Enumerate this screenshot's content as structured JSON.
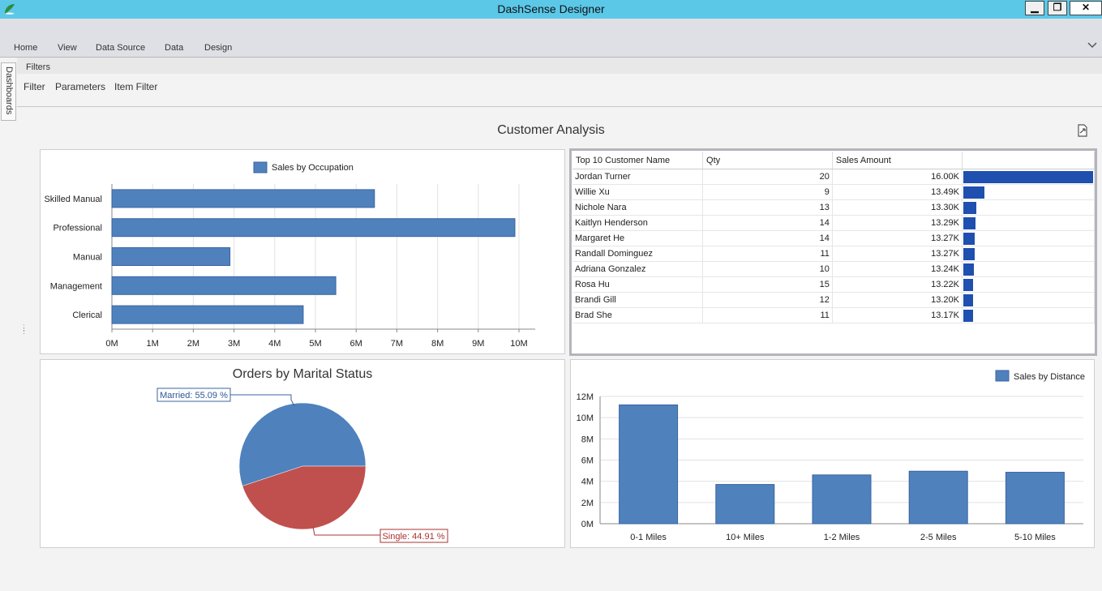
{
  "window": {
    "title": "DashSense Designer",
    "minimize_label": "▁",
    "maximize_label": "❐",
    "close_label": "✕"
  },
  "ribbon": {
    "tabs": [
      "Home",
      "View",
      "Data Source",
      "Data",
      "Design"
    ]
  },
  "side_panel": {
    "dashboards_label": "Dashboards"
  },
  "filters": {
    "header": "Filters",
    "buttons": [
      "Filter",
      "Parameters",
      "Item Filter"
    ]
  },
  "dashboard": {
    "title": "Customer Analysis"
  },
  "grid": {
    "columns": [
      "Top 10 Customer Name",
      "Qty",
      "Sales Amount",
      ""
    ],
    "bar_color": "#1f4faf",
    "rows": [
      {
        "name": "Jordan Turner",
        "qty": "20",
        "amount": "16.00K",
        "value": 16.0
      },
      {
        "name": "Willie Xu",
        "qty": "9",
        "amount": "13.49K",
        "value": 13.49
      },
      {
        "name": "Nichole Nara",
        "qty": "13",
        "amount": "13.30K",
        "value": 13.3
      },
      {
        "name": "Kaitlyn Henderson",
        "qty": "14",
        "amount": "13.29K",
        "value": 13.29
      },
      {
        "name": "Margaret He",
        "qty": "14",
        "amount": "13.27K",
        "value": 13.27
      },
      {
        "name": "Randall Dominguez",
        "qty": "11",
        "amount": "13.27K",
        "value": 13.27
      },
      {
        "name": "Adriana Gonzalez",
        "qty": "10",
        "amount": "13.24K",
        "value": 13.24
      },
      {
        "name": "Rosa Hu",
        "qty": "15",
        "amount": "13.22K",
        "value": 13.22
      },
      {
        "name": "Brandi Gill",
        "qty": "12",
        "amount": "13.20K",
        "value": 13.2
      },
      {
        "name": "Brad She",
        "qty": "11",
        "amount": "13.17K",
        "value": 13.17
      }
    ],
    "bar_scale_min": 13.0
  },
  "chart_data": [
    {
      "type": "bar",
      "orientation": "horizontal",
      "legend": "Sales by Occupation",
      "legend_position": "top",
      "categories": [
        "Skilled Manual",
        "Professional",
        "Manual",
        "Management",
        "Clerical"
      ],
      "values": [
        6.45,
        9.9,
        2.9,
        5.5,
        4.7
      ],
      "ticks": [
        "0M",
        "1M",
        "2M",
        "3M",
        "4M",
        "5M",
        "6M",
        "7M",
        "8M",
        "9M",
        "10M"
      ],
      "xlim": [
        0,
        10.5
      ],
      "color": "#4f81bd",
      "grid": true
    },
    {
      "type": "pie",
      "title": "Orders by Marital Status",
      "slices": [
        {
          "label": "Married: 55.09 %",
          "value": 55.09,
          "color": "#4f81bd"
        },
        {
          "label": "Single: 44.91 %",
          "value": 44.91,
          "color": "#c0504d"
        }
      ]
    },
    {
      "type": "bar",
      "legend": "Sales by Distance",
      "legend_position": "top-right",
      "categories": [
        "0-1 Miles",
        "10+ Miles",
        "1-2 Miles",
        "2-5 Miles",
        "5-10 Miles"
      ],
      "values": [
        11.2,
        3.7,
        4.6,
        4.95,
        4.85
      ],
      "ticks": [
        "0M",
        "2M",
        "4M",
        "6M",
        "8M",
        "10M",
        "12M"
      ],
      "ylim": [
        0,
        12
      ],
      "color": "#4f81bd",
      "grid": true
    }
  ]
}
